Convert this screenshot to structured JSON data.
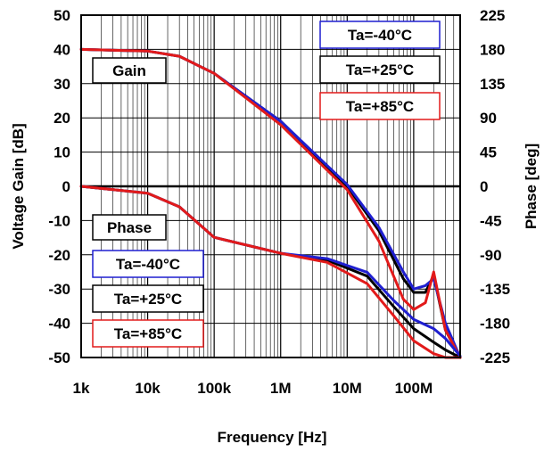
{
  "chart_data": {
    "type": "line",
    "x_scale": "log",
    "xlabel": "Frequency  [Hz]",
    "ylabel_left": "Voltage Gain [dB]",
    "ylabel_right": "Phase [deg]",
    "xlim": [
      1000,
      500000000
    ],
    "ylim_left": [
      -50,
      50
    ],
    "ylim_right": [
      -225,
      225
    ],
    "grid": true,
    "x_ticks": [
      {
        "value": 1000,
        "label": "1k"
      },
      {
        "value": 10000,
        "label": "10k"
      },
      {
        "value": 100000,
        "label": "100k"
      },
      {
        "value": 1000000,
        "label": "1M"
      },
      {
        "value": 10000000,
        "label": "10M"
      },
      {
        "value": 100000000,
        "label": "100M"
      }
    ],
    "y_ticks_left": [
      "50",
      "40",
      "30",
      "20",
      "10",
      "0",
      "-10",
      "-20",
      "-30",
      "-40",
      "-50"
    ],
    "y_ticks_right": [
      "225",
      "180",
      "135",
      "90",
      "45",
      "0",
      "-45",
      "-90",
      "-135",
      "-180",
      "-225"
    ],
    "group_labels": {
      "gain": "Gain",
      "phase": "Phase"
    },
    "legend": [
      {
        "name": "Ta=-40°C",
        "color": "#1f1fd0"
      },
      {
        "name": "Ta=+25°C",
        "color": "#000000"
      },
      {
        "name": "Ta=+85°C",
        "color": "#e21a1a"
      }
    ],
    "series": [
      {
        "name": "Ta=-40°C",
        "quantity": "gain",
        "axis": "left",
        "color": "#1f1fd0",
        "x": [
          1000,
          10000,
          30000,
          100000,
          1000000,
          10000000,
          30000000,
          70000000,
          100000000,
          150000000,
          200000000,
          300000000,
          500000000
        ],
        "y": [
          40,
          39.5,
          38,
          33,
          19,
          0.5,
          -12,
          -25,
          -30,
          -29,
          -27,
          -40,
          -50
        ]
      },
      {
        "name": "Ta=+25°C",
        "quantity": "gain",
        "axis": "left",
        "color": "#000000",
        "x": [
          1000,
          10000,
          30000,
          100000,
          1000000,
          10000000,
          30000000,
          70000000,
          100000000,
          150000000,
          200000000,
          300000000,
          500000000
        ],
        "y": [
          40,
          39.5,
          38,
          33,
          19,
          0,
          -13,
          -27,
          -31,
          -31,
          -26,
          -42,
          -50
        ]
      },
      {
        "name": "Ta=+85°C",
        "quantity": "gain",
        "axis": "left",
        "color": "#e21a1a",
        "x": [
          1000,
          10000,
          30000,
          100000,
          1000000,
          10000000,
          30000000,
          70000000,
          100000000,
          150000000,
          200000000,
          300000000,
          500000000
        ],
        "y": [
          40,
          39.5,
          38,
          33,
          18,
          -1,
          -16,
          -33,
          -36,
          -34,
          -25,
          -42,
          -50
        ]
      },
      {
        "name": "Ta=-40°C",
        "quantity": "phase",
        "axis": "right",
        "color": "#1f1fd0",
        "x": [
          1000,
          10000,
          30000,
          100000,
          1000000,
          5000000,
          20000000,
          50000000,
          100000000,
          200000000,
          300000000,
          500000000
        ],
        "y": [
          0,
          -9,
          -27,
          -67,
          -88,
          -95,
          -113,
          -150,
          -175,
          -187,
          -200,
          -223
        ]
      },
      {
        "name": "Ta=+25°C",
        "quantity": "phase",
        "axis": "right",
        "color": "#000000",
        "x": [
          1000,
          10000,
          30000,
          100000,
          1000000,
          5000000,
          20000000,
          50000000,
          100000000,
          200000000,
          300000000,
          500000000
        ],
        "y": [
          0,
          -9,
          -27,
          -67,
          -88,
          -97,
          -118,
          -158,
          -187,
          -205,
          -215,
          -225
        ]
      },
      {
        "name": "Ta=+85°C",
        "quantity": "phase",
        "axis": "right",
        "color": "#e21a1a",
        "x": [
          1000,
          10000,
          30000,
          100000,
          1000000,
          5000000,
          20000000,
          50000000,
          100000000,
          200000000,
          300000000,
          500000000
        ],
        "y": [
          0,
          -9,
          -27,
          -67,
          -88,
          -100,
          -128,
          -170,
          -203,
          -220,
          -225,
          -225
        ]
      }
    ]
  }
}
